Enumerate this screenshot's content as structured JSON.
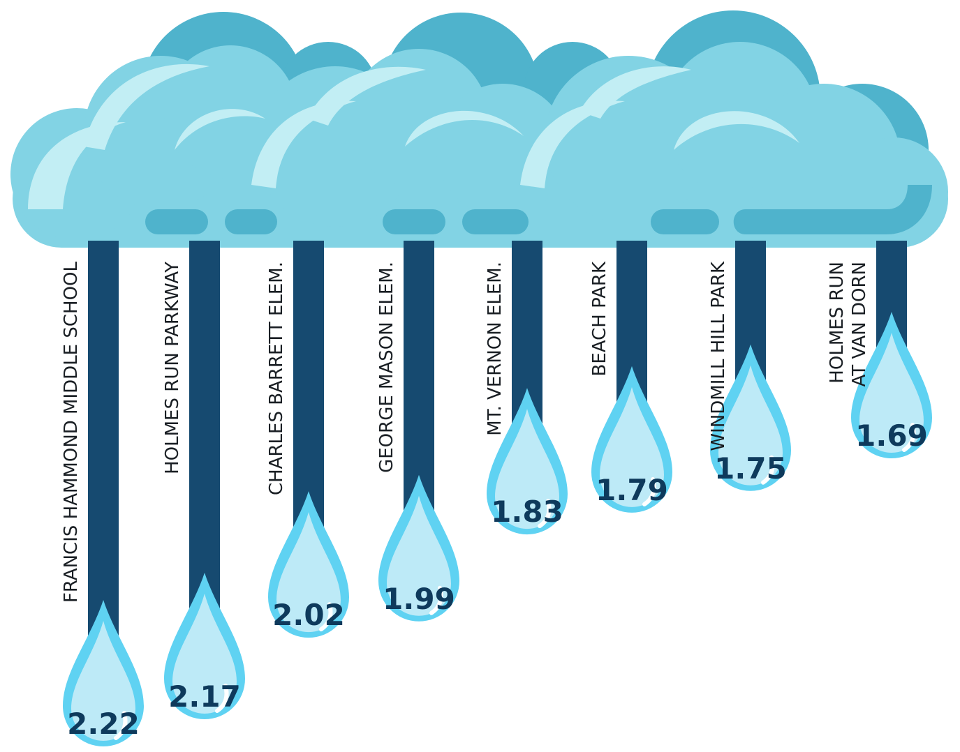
{
  "chart_data": {
    "type": "bar",
    "title": "",
    "xlabel": "",
    "ylabel": "",
    "categories": [
      "FRANCIS HAMMOND MIDDLE SCHOOL",
      "HOLMES RUN PARKWAY",
      "CHARLES BARRETT ELEM.",
      "GEORGE MASON ELEM.",
      "MT. VERNON ELEM.",
      "BEACH PARK",
      "WINDMILL HILL PARK",
      "HOLMES RUN AT VAN DORN"
    ],
    "label_lines": [
      [
        "FRANCIS HAMMOND MIDDLE SCHOOL"
      ],
      [
        "HOLMES RUN PARKWAY"
      ],
      [
        "CHARLES BARRETT ELEM."
      ],
      [
        "GEORGE MASON ELEM."
      ],
      [
        "MT. VERNON ELEM."
      ],
      [
        "BEACH PARK"
      ],
      [
        "WINDMILL HILL PARK"
      ],
      [
        "HOLMES RUN",
        "AT VAN DORN"
      ]
    ],
    "values": [
      2.22,
      2.17,
      2.02,
      1.99,
      1.83,
      1.79,
      1.75,
      1.69
    ],
    "value_labels": [
      "2.22",
      "2.17",
      "2.02",
      "1.99",
      "1.83",
      "1.79",
      "1.75",
      "1.69"
    ],
    "orientation": "vertical-hanging",
    "grid": false,
    "legend": "none",
    "colors": {
      "bar": "#164a70",
      "drop": "#5fd2f2",
      "drop_light": "#bdeaf7",
      "value_text": "#0e3a5c",
      "cloud_main": "#82d3e4",
      "cloud_dark": "#4fb3cc",
      "cloud_highlight": "#c2eef4"
    }
  }
}
